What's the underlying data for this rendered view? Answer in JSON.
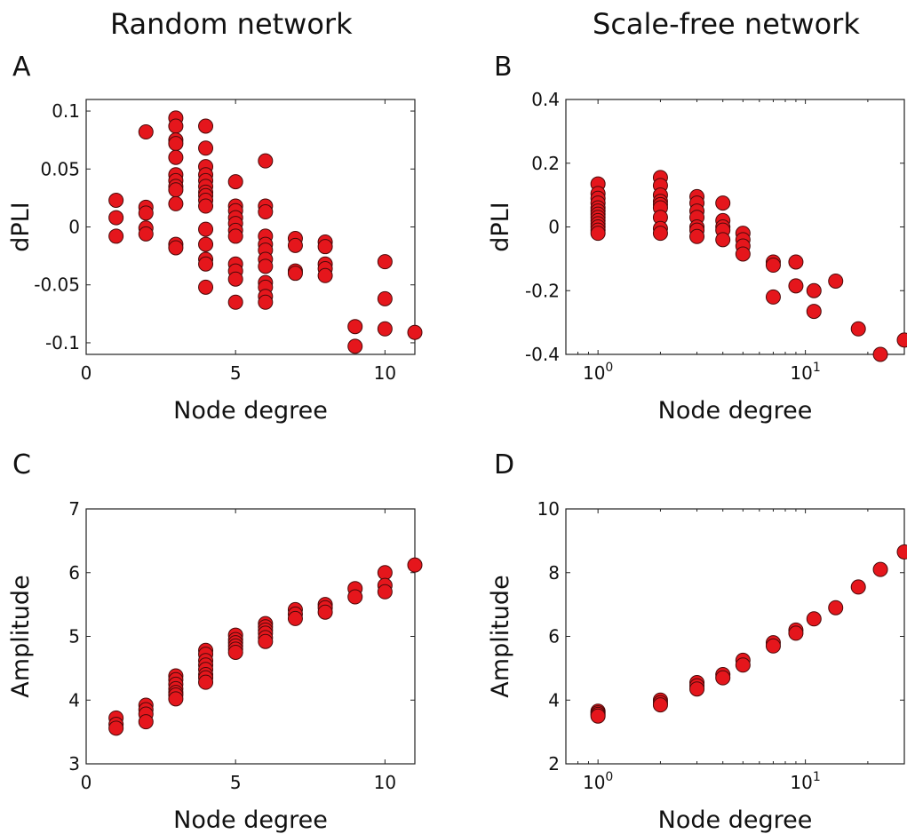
{
  "column_titles": {
    "left": "Random network",
    "right": "Scale-free network"
  },
  "panel_labels": {
    "A": "A",
    "B": "B",
    "C": "C",
    "D": "D"
  },
  "colors": {
    "marker_fill": "#e5161c",
    "marker_edge": "#4a0a0a",
    "axes": "#222222"
  },
  "chart_data": [
    {
      "id": "A",
      "type": "scatter",
      "title": "",
      "xlabel": "Node degree",
      "ylabel": "dPLI",
      "xscale": "linear",
      "xlim": [
        0,
        11
      ],
      "ylim": [
        -0.11,
        0.11
      ],
      "xticks": [
        0,
        5,
        10
      ],
      "xtick_labels": [
        "0",
        "5",
        "10"
      ],
      "yticks": [
        -0.1,
        -0.05,
        0,
        0.05,
        0.1
      ],
      "ytick_labels": [
        "-0.1",
        "-0.05",
        "0",
        "0.05",
        "0.1"
      ],
      "grid": false,
      "points": [
        [
          1,
          0.023
        ],
        [
          1,
          0.008
        ],
        [
          1,
          -0.008
        ],
        [
          2,
          0.082
        ],
        [
          2,
          0.017
        ],
        [
          2,
          0.012
        ],
        [
          2,
          -0.001
        ],
        [
          2,
          -0.006
        ],
        [
          3,
          0.094
        ],
        [
          3,
          0.087
        ],
        [
          3,
          0.075
        ],
        [
          3,
          0.072
        ],
        [
          3,
          0.06
        ],
        [
          3,
          0.045
        ],
        [
          3,
          0.04
        ],
        [
          3,
          0.035
        ],
        [
          3,
          0.032
        ],
        [
          3,
          0.02
        ],
        [
          3,
          -0.015
        ],
        [
          3,
          -0.018
        ],
        [
          4,
          0.087
        ],
        [
          4,
          0.068
        ],
        [
          4,
          0.052
        ],
        [
          4,
          0.045
        ],
        [
          4,
          0.04
        ],
        [
          4,
          0.035
        ],
        [
          4,
          0.03
        ],
        [
          4,
          0.027
        ],
        [
          4,
          0.023
        ],
        [
          4,
          0.018
        ],
        [
          4,
          -0.002
        ],
        [
          4,
          -0.015
        ],
        [
          4,
          -0.028
        ],
        [
          4,
          -0.032
        ],
        [
          4,
          -0.052
        ],
        [
          5,
          0.039
        ],
        [
          5,
          0.018
        ],
        [
          5,
          0.014
        ],
        [
          5,
          0.008
        ],
        [
          5,
          0.003
        ],
        [
          5,
          -0.003
        ],
        [
          5,
          -0.008
        ],
        [
          5,
          -0.032
        ],
        [
          5,
          -0.038
        ],
        [
          5,
          -0.045
        ],
        [
          5,
          -0.065
        ],
        [
          6,
          0.057
        ],
        [
          6,
          0.018
        ],
        [
          6,
          0.013
        ],
        [
          6,
          -0.008
        ],
        [
          6,
          -0.015
        ],
        [
          6,
          -0.02
        ],
        [
          6,
          -0.028
        ],
        [
          6,
          -0.034
        ],
        [
          6,
          -0.048
        ],
        [
          6,
          -0.052
        ],
        [
          6,
          -0.06
        ],
        [
          6,
          -0.065
        ],
        [
          7,
          -0.01
        ],
        [
          7,
          -0.016
        ],
        [
          7,
          -0.038
        ],
        [
          7,
          -0.04
        ],
        [
          8,
          -0.013
        ],
        [
          8,
          -0.017
        ],
        [
          8,
          -0.032
        ],
        [
          8,
          -0.036
        ],
        [
          8,
          -0.042
        ],
        [
          9,
          -0.086
        ],
        [
          9,
          -0.103
        ],
        [
          10,
          -0.03
        ],
        [
          10,
          -0.062
        ],
        [
          10,
          -0.088
        ],
        [
          11,
          -0.091
        ]
      ]
    },
    {
      "id": "B",
      "type": "scatter",
      "title": "",
      "xlabel": "Node degree",
      "ylabel": "dPLI",
      "xscale": "log",
      "xlim": [
        0.7,
        30
      ],
      "ylim": [
        -0.4,
        0.4
      ],
      "xticks": [
        1,
        10
      ],
      "xtick_labels": [
        {
          "base": "10",
          "exp": "0"
        },
        {
          "base": "10",
          "exp": "1"
        }
      ],
      "yticks": [
        -0.4,
        -0.2,
        0,
        0.2,
        0.4
      ],
      "ytick_labels": [
        "-0.4",
        "-0.2",
        "0",
        "0.2",
        "0.4"
      ],
      "grid": false,
      "points": [
        [
          1,
          0.135
        ],
        [
          1,
          0.105
        ],
        [
          1,
          0.09
        ],
        [
          1,
          0.075
        ],
        [
          1,
          0.06
        ],
        [
          1,
          0.05
        ],
        [
          1,
          0.04
        ],
        [
          1,
          0.03
        ],
        [
          1,
          0.02
        ],
        [
          1,
          0.01
        ],
        [
          1,
          0.0
        ],
        [
          1,
          -0.01
        ],
        [
          1,
          -0.02
        ],
        [
          2,
          0.155
        ],
        [
          2,
          0.13
        ],
        [
          2,
          0.1
        ],
        [
          2,
          0.08
        ],
        [
          2,
          0.07
        ],
        [
          2,
          0.06
        ],
        [
          2,
          0.03
        ],
        [
          2,
          -0.005
        ],
        [
          2,
          -0.02
        ],
        [
          3,
          0.095
        ],
        [
          3,
          0.075
        ],
        [
          3,
          0.05
        ],
        [
          3,
          0.03
        ],
        [
          3,
          0.0
        ],
        [
          3,
          -0.01
        ],
        [
          3,
          -0.03
        ],
        [
          4,
          0.075
        ],
        [
          4,
          0.02
        ],
        [
          4,
          0.0
        ],
        [
          4,
          -0.01
        ],
        [
          4,
          -0.04
        ],
        [
          5,
          -0.02
        ],
        [
          5,
          -0.04
        ],
        [
          5,
          -0.06
        ],
        [
          5,
          -0.085
        ],
        [
          7,
          -0.11
        ],
        [
          7,
          -0.12
        ],
        [
          7,
          -0.22
        ],
        [
          9,
          -0.11
        ],
        [
          9,
          -0.185
        ],
        [
          11,
          -0.2
        ],
        [
          11,
          -0.265
        ],
        [
          14,
          -0.17
        ],
        [
          18,
          -0.32
        ],
        [
          23,
          -0.4
        ],
        [
          30,
          -0.355
        ]
      ]
    },
    {
      "id": "C",
      "type": "scatter",
      "title": "",
      "xlabel": "Node degree",
      "ylabel": "Amplitude",
      "xscale": "linear",
      "xlim": [
        0,
        11
      ],
      "ylim": [
        3,
        7
      ],
      "xticks": [
        0,
        5,
        10
      ],
      "xtick_labels": [
        "0",
        "5",
        "10"
      ],
      "yticks": [
        3,
        4,
        5,
        6,
        7
      ],
      "ytick_labels": [
        "3",
        "4",
        "5",
        "6",
        "7"
      ],
      "grid": false,
      "points": [
        [
          1,
          3.72
        ],
        [
          1,
          3.62
        ],
        [
          1,
          3.56
        ],
        [
          2,
          3.92
        ],
        [
          2,
          3.85
        ],
        [
          2,
          3.78
        ],
        [
          2,
          3.66
        ],
        [
          3,
          4.38
        ],
        [
          3,
          4.32
        ],
        [
          3,
          4.25
        ],
        [
          3,
          4.18
        ],
        [
          3,
          4.12
        ],
        [
          3,
          4.08
        ],
        [
          3,
          4.02
        ],
        [
          4,
          4.78
        ],
        [
          4,
          4.72
        ],
        [
          4,
          4.62
        ],
        [
          4,
          4.55
        ],
        [
          4,
          4.48
        ],
        [
          4,
          4.4
        ],
        [
          4,
          4.35
        ],
        [
          4,
          4.28
        ],
        [
          5,
          5.02
        ],
        [
          5,
          4.95
        ],
        [
          5,
          4.9
        ],
        [
          5,
          4.85
        ],
        [
          5,
          4.8
        ],
        [
          5,
          4.75
        ],
        [
          6,
          5.2
        ],
        [
          6,
          5.15
        ],
        [
          6,
          5.1
        ],
        [
          6,
          5.05
        ],
        [
          6,
          4.98
        ],
        [
          6,
          4.92
        ],
        [
          7,
          5.42
        ],
        [
          7,
          5.35
        ],
        [
          7,
          5.28
        ],
        [
          8,
          5.5
        ],
        [
          8,
          5.45
        ],
        [
          8,
          5.38
        ],
        [
          9,
          5.75
        ],
        [
          9,
          5.62
        ],
        [
          10,
          6.0
        ],
        [
          10,
          5.8
        ],
        [
          10,
          5.7
        ],
        [
          11,
          6.12
        ]
      ]
    },
    {
      "id": "D",
      "type": "scatter",
      "title": "",
      "xlabel": "Node degree",
      "ylabel": "Amplitude",
      "xscale": "log",
      "xlim": [
        0.7,
        30
      ],
      "ylim": [
        2,
        10
      ],
      "xticks": [
        1,
        10
      ],
      "xtick_labels": [
        {
          "base": "10",
          "exp": "0"
        },
        {
          "base": "10",
          "exp": "1"
        }
      ],
      "yticks": [
        2,
        4,
        6,
        8,
        10
      ],
      "ytick_labels": [
        "2",
        "4",
        "6",
        "8",
        "10"
      ],
      "grid": false,
      "points": [
        [
          1,
          3.65
        ],
        [
          1,
          3.6
        ],
        [
          1,
          3.55
        ],
        [
          1,
          3.5
        ],
        [
          2,
          4.0
        ],
        [
          2,
          3.92
        ],
        [
          2,
          3.85
        ],
        [
          3,
          4.55
        ],
        [
          3,
          4.45
        ],
        [
          3,
          4.35
        ],
        [
          4,
          4.8
        ],
        [
          4,
          4.7
        ],
        [
          5,
          5.25
        ],
        [
          5,
          5.1
        ],
        [
          7,
          5.8
        ],
        [
          7,
          5.7
        ],
        [
          9,
          6.2
        ],
        [
          9,
          6.1
        ],
        [
          11,
          6.55
        ],
        [
          14,
          6.9
        ],
        [
          18,
          7.55
        ],
        [
          23,
          8.1
        ],
        [
          30,
          8.65
        ]
      ]
    }
  ]
}
